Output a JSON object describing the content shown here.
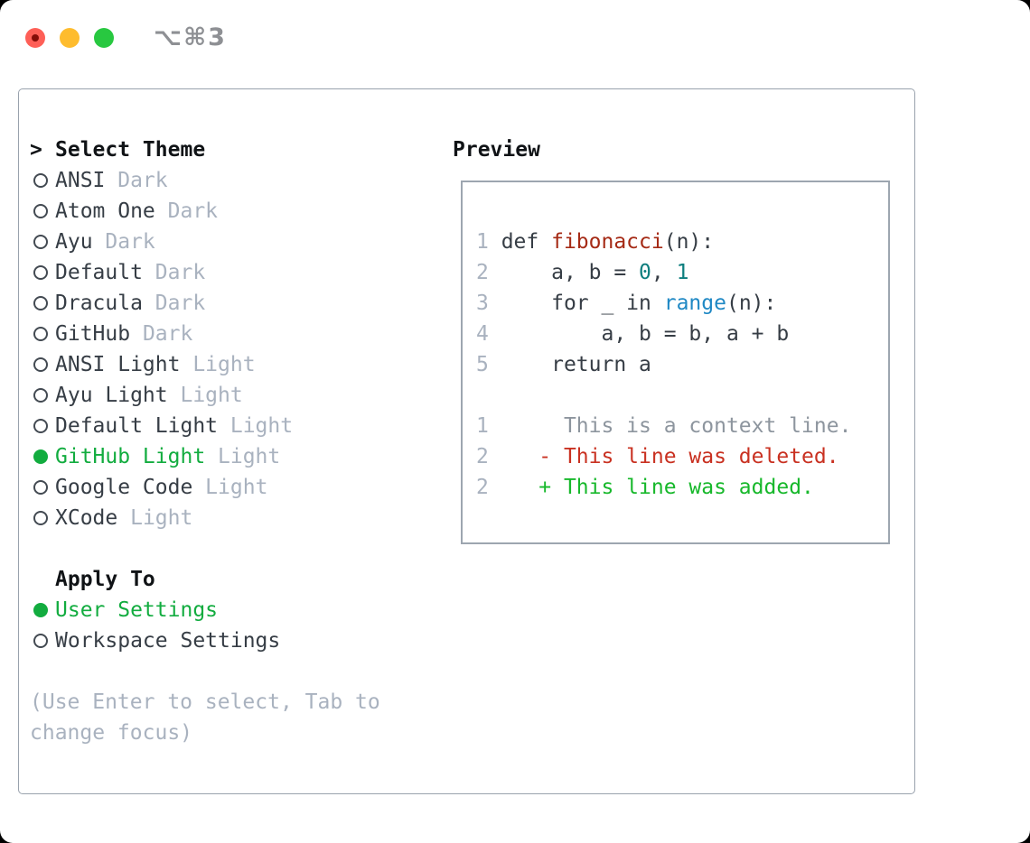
{
  "window": {
    "title": "⌥⌘3",
    "traffic_lights": [
      {
        "name": "close",
        "color": "#fe5f57",
        "inner_dot": "#850d08"
      },
      {
        "name": "minimize",
        "color": "#febc2e",
        "inner_dot": null
      },
      {
        "name": "zoom",
        "color": "#28c840",
        "inner_dot": null
      }
    ]
  },
  "theme_picker": {
    "cursor": ">",
    "header": "Select Theme",
    "items": [
      {
        "name": "ANSI",
        "tag": "Dark",
        "selected": false
      },
      {
        "name": "Atom One",
        "tag": "Dark",
        "selected": false
      },
      {
        "name": "Ayu",
        "tag": "Dark",
        "selected": false
      },
      {
        "name": "Default",
        "tag": "Dark",
        "selected": false
      },
      {
        "name": "Dracula",
        "tag": "Dark",
        "selected": false
      },
      {
        "name": "GitHub",
        "tag": "Dark",
        "selected": false
      },
      {
        "name": "ANSI Light",
        "tag": "Light",
        "selected": false
      },
      {
        "name": "Ayu Light",
        "tag": "Light",
        "selected": false
      },
      {
        "name": "Default Light",
        "tag": "Light",
        "selected": false
      },
      {
        "name": "GitHub Light",
        "tag": "Light",
        "selected": true
      },
      {
        "name": "Google Code",
        "tag": "Light",
        "selected": false
      },
      {
        "name": "XCode",
        "tag": "Light",
        "selected": false
      }
    ],
    "apply_to": {
      "header": "Apply To",
      "items": [
        {
          "name": "User Settings",
          "selected": true
        },
        {
          "name": "Workspace Settings",
          "selected": false
        }
      ]
    },
    "help": "(Use Enter to select, Tab to change focus)"
  },
  "preview": {
    "title": "Preview",
    "lines": [
      [
        [
          "1 ",
          "num"
        ],
        [
          "def ",
          "fg"
        ],
        [
          "fibonacci",
          "fn"
        ],
        [
          "(n):",
          "fg"
        ]
      ],
      [
        [
          "2 ",
          "num"
        ],
        [
          "    a, b = ",
          "fg"
        ],
        [
          "0",
          "lit"
        ],
        [
          ", ",
          "fg"
        ],
        [
          "1",
          "lit"
        ]
      ],
      [
        [
          "3 ",
          "num"
        ],
        [
          "    for _ in ",
          "fg"
        ],
        [
          "range",
          "blt"
        ],
        [
          "(n):",
          "fg"
        ]
      ],
      [
        [
          "4 ",
          "num"
        ],
        [
          "        a, b = b, a + b",
          "fg"
        ]
      ],
      [
        [
          "5 ",
          "num"
        ],
        [
          "    return a",
          "fg"
        ]
      ],
      [],
      [
        [
          "1      ",
          "num"
        ],
        [
          "This is a context line.",
          "ctx"
        ]
      ],
      [
        [
          "2    ",
          "num"
        ],
        [
          "- This line was deleted.",
          "del"
        ]
      ],
      [
        [
          "2    ",
          "num"
        ],
        [
          "+ This line was added.",
          "add"
        ]
      ]
    ]
  },
  "colors": {
    "fg": "#363d45",
    "num": "#a9b2bf",
    "fn": "#a52a15",
    "lit": "#0d7e7e",
    "blt": "#1f88c4",
    "ctx": "#8d959e",
    "del": "#c93121",
    "add": "#17b82b",
    "sel": "#12ac3f",
    "tag": "#a9b2bf",
    "help": "#a9b2bf"
  }
}
